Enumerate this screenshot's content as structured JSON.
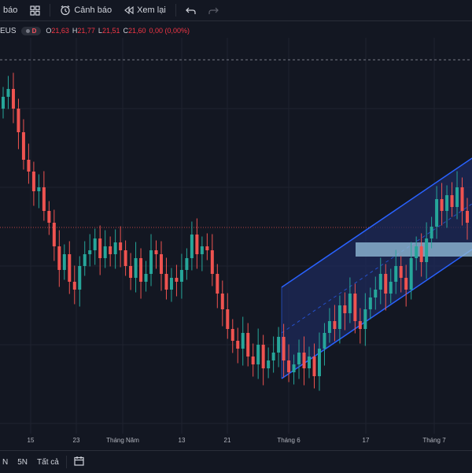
{
  "toolbar": {
    "alerts_partial": "báo",
    "alert_label": "Cảnh báo",
    "replay_label": "Xem lại"
  },
  "legend": {
    "symbol_partial": "EUS",
    "interval_badge": "D",
    "open_key": "O",
    "open": "21,63",
    "high_key": "H",
    "high": "21,77",
    "low_key": "L",
    "low": "21,51",
    "close_key": "C",
    "close": "21,60",
    "change": "0,00 (0,00%)"
  },
  "xaxis": {
    "ticks": [
      {
        "label": "15"
      },
      {
        "label": "23"
      },
      {
        "label": "Tháng Năm"
      },
      {
        "label": "13"
      },
      {
        "label": "21"
      },
      {
        "label": "Tháng 6"
      },
      {
        "label": "17"
      },
      {
        "label": "Tháng 7"
      }
    ]
  },
  "bottombar": {
    "range_partial": "N",
    "range_5n": "5N",
    "range_all": "Tất cả"
  },
  "colors": {
    "background": "#131722",
    "up": "#26a69a",
    "down": "#ef5350",
    "channel_line": "#2962ff",
    "channel_fill": "#1e2a5a",
    "zone": "#8fb8d4"
  },
  "chart_data": {
    "type": "candlestick",
    "closes": [
      21.9,
      22.1,
      21.6,
      21.0,
      20.3,
      20.0,
      19.5,
      19.6,
      19.0,
      18.7,
      18.1,
      17.5,
      17.9,
      17.2,
      17.0,
      17.6,
      17.9,
      18.0,
      18.3,
      17.8,
      18.1,
      17.9,
      18.2,
      18.0,
      17.6,
      17.3,
      17.8,
      17.2,
      17.4,
      18.0,
      17.9,
      17.4,
      17.0,
      17.3,
      17.2,
      17.5,
      17.8,
      18.4,
      17.9,
      18.1,
      18.0,
      17.4,
      16.9,
      16.5,
      16.0,
      15.7,
      15.5,
      15.9,
      15.3,
      15.1,
      15.6,
      15.0,
      15.2,
      15.4,
      15.8,
      15.2,
      14.9,
      15.1,
      15.4,
      15.0,
      15.3,
      14.8,
      15.5,
      15.9,
      16.2,
      16.0,
      16.6,
      16.4,
      16.9,
      16.2,
      16.0,
      16.5,
      16.8,
      17.0,
      17.4,
      16.9,
      17.2,
      17.6,
      17.3,
      17.0,
      17.8,
      18.1,
      17.7,
      18.3,
      18.6,
      19.3,
      19.0,
      19.4,
      19.1,
      19.6,
      19.0,
      18.7
    ]
  }
}
